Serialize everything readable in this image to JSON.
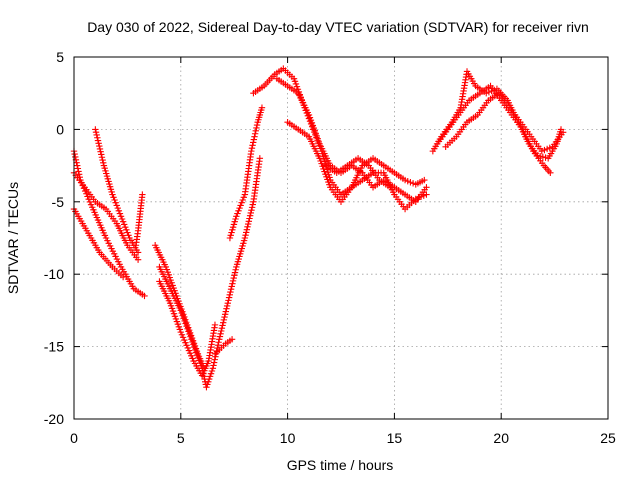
{
  "chart_data": {
    "type": "scatter",
    "title": "Day 030 of 2022, Sidereal Day-to-day VTEC variation (SDTVAR) for receiver rivn",
    "xlabel": "GPS time / hours",
    "ylabel": "SDTVAR / TECUs",
    "xlim": [
      0,
      25
    ],
    "ylim": [
      -20,
      5
    ],
    "x_ticks": [
      "0",
      "5",
      "10",
      "15",
      "20",
      "25"
    ],
    "y_ticks": [
      "5",
      "0",
      "-5",
      "-10",
      "-15",
      "-20"
    ],
    "x_tick_values": [
      0,
      5,
      10,
      15,
      20,
      25
    ],
    "y_tick_values": [
      5,
      0,
      -5,
      -10,
      -15,
      -20
    ],
    "grid": true,
    "marker": "+",
    "color": "#ff0000",
    "series": [
      {
        "name": "track-1",
        "points": [
          [
            0.0,
            -1.5
          ],
          [
            0.3,
            -3.5
          ],
          [
            0.8,
            -5.2
          ],
          [
            1.5,
            -7.5
          ],
          [
            2.2,
            -9.5
          ],
          [
            2.8,
            -11.0
          ],
          [
            3.3,
            -11.5
          ]
        ]
      },
      {
        "name": "track-2",
        "points": [
          [
            0.0,
            -3.0
          ],
          [
            0.5,
            -4.0
          ],
          [
            1.0,
            -5.0
          ],
          [
            1.5,
            -5.5
          ],
          [
            2.0,
            -6.5
          ],
          [
            2.5,
            -8.0
          ],
          [
            3.0,
            -9.0
          ]
        ]
      },
      {
        "name": "track-3",
        "points": [
          [
            0.0,
            -5.5
          ],
          [
            0.6,
            -7.0
          ],
          [
            1.2,
            -8.5
          ],
          [
            1.8,
            -9.5
          ],
          [
            2.3,
            -10.2
          ]
        ]
      },
      {
        "name": "track-4",
        "points": [
          [
            1.0,
            0.0
          ],
          [
            1.4,
            -2.5
          ],
          [
            1.8,
            -4.5
          ],
          [
            2.2,
            -6.0
          ],
          [
            2.6,
            -7.5
          ],
          [
            3.0,
            -8.5
          ]
        ]
      },
      {
        "name": "track-5",
        "points": [
          [
            3.2,
            -4.5
          ],
          [
            3.0,
            -7.0
          ],
          [
            2.9,
            -8.0
          ]
        ]
      },
      {
        "name": "track-6",
        "points": [
          [
            4.0,
            -9.5
          ],
          [
            4.5,
            -11.0
          ],
          [
            5.0,
            -12.5
          ],
          [
            5.5,
            -14.5
          ],
          [
            6.0,
            -16.5
          ],
          [
            6.2,
            -17.8
          ],
          [
            6.5,
            -16.5
          ],
          [
            6.8,
            -14.5
          ],
          [
            7.2,
            -12.0
          ],
          [
            7.6,
            -9.5
          ],
          [
            8.0,
            -7.5
          ],
          [
            8.4,
            -5.0
          ],
          [
            8.7,
            -2.0
          ]
        ]
      },
      {
        "name": "track-7",
        "points": [
          [
            4.0,
            -10.5
          ],
          [
            4.5,
            -12.0
          ],
          [
            5.0,
            -14.0
          ],
          [
            5.6,
            -16.0
          ],
          [
            6.0,
            -17.0
          ],
          [
            6.3,
            -16.0
          ],
          [
            6.6,
            -13.5
          ]
        ]
      },
      {
        "name": "track-8",
        "points": [
          [
            3.8,
            -8.0
          ],
          [
            4.3,
            -9.5
          ],
          [
            4.8,
            -11.5
          ],
          [
            5.3,
            -13.5
          ],
          [
            5.8,
            -15.5
          ],
          [
            6.1,
            -16.5
          ]
        ]
      },
      {
        "name": "track-9",
        "points": [
          [
            6.6,
            -15.5
          ],
          [
            7.1,
            -14.8
          ],
          [
            7.4,
            -14.5
          ]
        ]
      },
      {
        "name": "track-10",
        "points": [
          [
            7.3,
            -7.5
          ],
          [
            7.6,
            -6.0
          ],
          [
            8.0,
            -4.5
          ],
          [
            8.3,
            -1.5
          ],
          [
            8.6,
            0.5
          ],
          [
            8.8,
            1.5
          ]
        ]
      },
      {
        "name": "track-11",
        "points": [
          [
            8.4,
            2.5
          ],
          [
            8.9,
            3.0
          ],
          [
            9.4,
            3.8
          ],
          [
            9.8,
            4.2
          ],
          [
            10.3,
            3.5
          ],
          [
            10.8,
            1.5
          ],
          [
            11.2,
            0.0
          ],
          [
            11.6,
            -1.5
          ],
          [
            12.0,
            -3.5
          ],
          [
            12.5,
            -4.5
          ],
          [
            13.0,
            -4.0
          ],
          [
            13.5,
            -2.5
          ],
          [
            14.0,
            -2.0
          ],
          [
            14.5,
            -2.5
          ],
          [
            15.0,
            -3.0
          ],
          [
            15.5,
            -3.5
          ],
          [
            16.0,
            -3.8
          ],
          [
            16.4,
            -3.5
          ]
        ]
      },
      {
        "name": "track-12",
        "points": [
          [
            9.5,
            3.5
          ],
          [
            10.0,
            3.0
          ],
          [
            10.5,
            2.5
          ],
          [
            11.0,
            1.0
          ],
          [
            11.5,
            -1.0
          ],
          [
            12.0,
            -2.5
          ],
          [
            12.5,
            -3.0
          ],
          [
            13.0,
            -2.5
          ],
          [
            13.5,
            -3.0
          ],
          [
            14.0,
            -4.0
          ],
          [
            14.5,
            -3.5
          ],
          [
            15.0,
            -4.0
          ],
          [
            15.5,
            -4.5
          ],
          [
            16.0,
            -5.0
          ],
          [
            16.5,
            -4.0
          ]
        ]
      },
      {
        "name": "track-13",
        "points": [
          [
            10.0,
            0.5
          ],
          [
            10.5,
            0.0
          ],
          [
            11.0,
            -0.5
          ],
          [
            11.5,
            -2.0
          ],
          [
            12.0,
            -4.0
          ],
          [
            12.5,
            -5.0
          ],
          [
            13.0,
            -4.0
          ],
          [
            13.5,
            -3.5
          ],
          [
            14.0,
            -3.0
          ],
          [
            14.5,
            -3.0
          ],
          [
            15.0,
            -4.5
          ],
          [
            15.5,
            -5.5
          ],
          [
            16.0,
            -4.8
          ],
          [
            16.5,
            -4.5
          ]
        ]
      },
      {
        "name": "track-14",
        "points": [
          [
            11.8,
            -2.5
          ],
          [
            12.3,
            -3.0
          ],
          [
            12.8,
            -2.5
          ],
          [
            13.3,
            -2.0
          ],
          [
            13.8,
            -2.5
          ],
          [
            14.3,
            -3.5
          ],
          [
            14.8,
            -4.0
          ]
        ]
      },
      {
        "name": "track-15",
        "points": [
          [
            16.8,
            -1.5
          ],
          [
            17.2,
            -0.5
          ],
          [
            17.7,
            0.5
          ],
          [
            18.1,
            1.5
          ],
          [
            18.4,
            4.0
          ],
          [
            18.8,
            3.0
          ],
          [
            19.3,
            2.5
          ],
          [
            19.8,
            2.8
          ],
          [
            20.3,
            2.0
          ],
          [
            20.8,
            0.5
          ],
          [
            21.3,
            -1.0
          ],
          [
            21.7,
            -1.8
          ],
          [
            22.2,
            -2.0
          ],
          [
            22.6,
            -1.0
          ],
          [
            22.8,
            0.0
          ]
        ]
      },
      {
        "name": "track-16",
        "points": [
          [
            17.0,
            -1.0
          ],
          [
            17.5,
            0.0
          ],
          [
            18.0,
            1.0
          ],
          [
            18.5,
            2.0
          ],
          [
            19.0,
            2.5
          ],
          [
            19.5,
            3.0
          ],
          [
            20.0,
            2.0
          ],
          [
            20.5,
            1.0
          ],
          [
            21.0,
            0.0
          ],
          [
            21.5,
            -1.5
          ],
          [
            22.0,
            -2.5
          ],
          [
            22.3,
            -3.0
          ]
        ]
      },
      {
        "name": "track-17",
        "points": [
          [
            17.4,
            -1.2
          ],
          [
            17.9,
            -0.5
          ],
          [
            18.4,
            0.5
          ],
          [
            18.9,
            1.0
          ],
          [
            19.4,
            2.0
          ],
          [
            19.9,
            2.5
          ],
          [
            20.4,
            1.5
          ],
          [
            20.9,
            0.5
          ],
          [
            21.4,
            -0.5
          ],
          [
            21.9,
            -1.5
          ],
          [
            22.4,
            -1.2
          ],
          [
            22.9,
            -0.2
          ]
        ]
      }
    ]
  }
}
